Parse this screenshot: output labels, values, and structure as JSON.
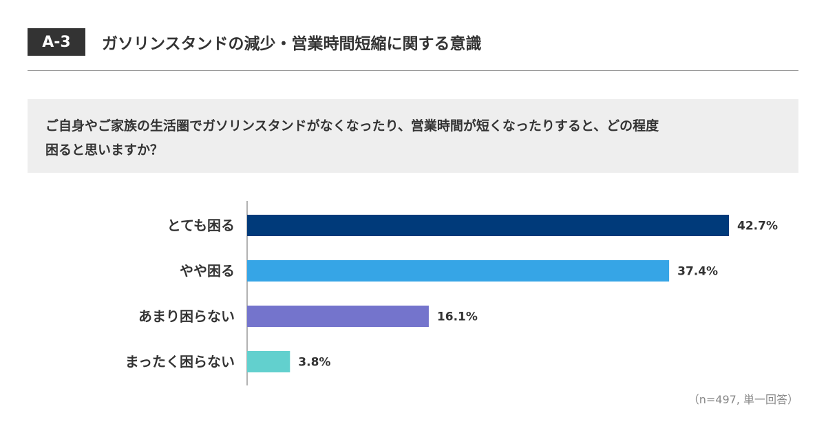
{
  "header": {
    "badge": "A-3",
    "title": "ガソリンスタンドの減少・営業時間短縮に関する意識"
  },
  "question": {
    "line1": "ご自身やご家族の生活圏でガソリンスタンドがなくなったり、営業時間が短くなったりすると、どの程度",
    "line2": "困ると思いますか？"
  },
  "chart_data": {
    "type": "bar",
    "orientation": "horizontal",
    "categories": [
      "とても困る",
      "やや困る",
      "あまり困らない",
      "まったく困らない"
    ],
    "values": [
      42.7,
      37.4,
      16.1,
      3.8
    ],
    "value_labels": [
      "42.7%",
      "37.4%",
      "16.1%",
      "3.8%"
    ],
    "colors": [
      "#003A7A",
      "#36A5E6",
      "#7474CC",
      "#62D0CE"
    ],
    "xlim": [
      0,
      42.7
    ],
    "grid": false,
    "legend": "none"
  },
  "note": "（n=497, 単一回答）"
}
